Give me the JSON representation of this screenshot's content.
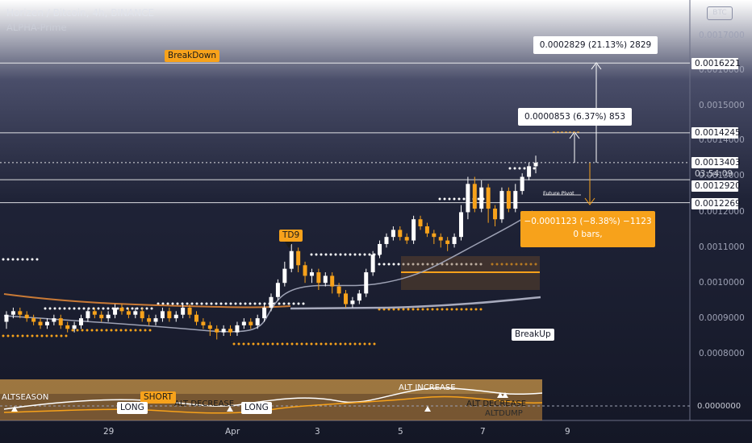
{
  "header": {
    "title": "Horizen / Bitcoin, 4h, BINANCE",
    "indicator": "ALPHA-Prime",
    "currency_badge": "BTC"
  },
  "price_axis": {
    "labels": [
      "0.0017000",
      "0.0016000",
      "0.0015000",
      "0.0014000",
      "0.0013000",
      "0.0012000",
      "0.0011000",
      "0.0010000",
      "0.0009000",
      "0.0008000"
    ],
    "tags": {
      "level_1": "0.0016221",
      "level_2": "0.0014245",
      "current_price": "0.0013403",
      "countdown": "03:54:09",
      "level_3": "0.0012920",
      "level_4": "0.0012269"
    },
    "oscillator_zero": "0.0000000"
  },
  "time_axis": {
    "labels": [
      "29",
      "Apr",
      "3",
      "5",
      "7",
      "9"
    ]
  },
  "annotations": {
    "range_up_large": "0.0002829 (21.13%) 2829",
    "range_up_small": "0.0000853 (6.37%) 853",
    "range_down_line1": "−0.0001123 (−8.38%) −1123",
    "range_down_line2": "0 bars,",
    "td9": "TD9",
    "breakdown": "BreakDown",
    "breakup": "BreakUp",
    "future_pivot": "Future Pivot"
  },
  "oscillator": {
    "alt_season": "ALTSEASON",
    "short": "SHORT",
    "long_1": "LONG",
    "long_2": "LONG",
    "alt_decrease_1": "ALT DECREASE",
    "alt_decrease_2": "ALT DECREASE",
    "alt_increase": "ALT INCREASE",
    "alt_dump": "ALTDUMP"
  },
  "colors": {
    "bull_candle": "#ffffff",
    "bear_candle": "#f7a21b",
    "accent_orange": "#f7a21b",
    "background": "#161a2b"
  },
  "chart_data": {
    "type": "candlestick",
    "symbol": "Horizen / Bitcoin",
    "timeframe": "4h",
    "exchange": "BINANCE",
    "ylim": [
      0.00075,
      0.00175
    ],
    "x_ticks": [
      "29",
      "Apr",
      "3",
      "5",
      "7",
      "9"
    ],
    "last_price": 0.0013403,
    "horizontal_levels": [
      0.0016221,
      0.0014245,
      0.0013403,
      0.001292,
      0.0012269
    ],
    "candles": [
      [
        0.00089,
        0.00091,
        0.00087,
        0.00092
      ],
      [
        0.00091,
        0.00092,
        0.0009,
        0.00093
      ],
      [
        0.00092,
        0.00091,
        0.0009,
        0.00093
      ],
      [
        0.00091,
        0.0009,
        0.00089,
        0.00092
      ],
      [
        0.0009,
        0.00089,
        0.00088,
        0.00091
      ],
      [
        0.00089,
        0.00088,
        0.00087,
        0.0009
      ],
      [
        0.00088,
        0.00089,
        0.00087,
        0.0009
      ],
      [
        0.00089,
        0.0009,
        0.00088,
        0.00091
      ],
      [
        0.0009,
        0.00088,
        0.00087,
        0.00091
      ],
      [
        0.00088,
        0.00087,
        0.00086,
        0.00089
      ],
      [
        0.00087,
        0.00088,
        0.00086,
        0.00089
      ],
      [
        0.00088,
        0.0009,
        0.00087,
        0.00091
      ],
      [
        0.0009,
        0.00092,
        0.00089,
        0.00093
      ],
      [
        0.00092,
        0.00091,
        0.0009,
        0.00093
      ],
      [
        0.00091,
        0.0009,
        0.00089,
        0.00092
      ],
      [
        0.0009,
        0.00091,
        0.00089,
        0.00092
      ],
      [
        0.00091,
        0.00093,
        0.0009,
        0.00094
      ],
      [
        0.00093,
        0.00092,
        0.00091,
        0.00094
      ],
      [
        0.00092,
        0.00091,
        0.0009,
        0.00093
      ],
      [
        0.00091,
        0.00092,
        0.0009,
        0.00093
      ],
      [
        0.00092,
        0.0009,
        0.00089,
        0.00093
      ],
      [
        0.0009,
        0.00089,
        0.00088,
        0.00091
      ],
      [
        0.00089,
        0.0009,
        0.00088,
        0.00091
      ],
      [
        0.0009,
        0.00092,
        0.00089,
        0.00093
      ],
      [
        0.00092,
        0.0009,
        0.00089,
        0.00093
      ],
      [
        0.0009,
        0.00091,
        0.00089,
        0.00092
      ],
      [
        0.00091,
        0.00093,
        0.0009,
        0.00094
      ],
      [
        0.00093,
        0.00091,
        0.0009,
        0.00094
      ],
      [
        0.00091,
        0.00089,
        0.00088,
        0.00092
      ],
      [
        0.00089,
        0.00088,
        0.00087,
        0.0009
      ],
      [
        0.00088,
        0.00087,
        0.00085,
        0.00089
      ],
      [
        0.00087,
        0.00086,
        0.00084,
        0.00088
      ],
      [
        0.00086,
        0.00087,
        0.00085,
        0.00088
      ],
      [
        0.00087,
        0.00086,
        0.00085,
        0.00088
      ],
      [
        0.00086,
        0.00088,
        0.00085,
        0.00089
      ],
      [
        0.00088,
        0.00089,
        0.00087,
        0.0009
      ],
      [
        0.00089,
        0.00088,
        0.00087,
        0.0009
      ],
      [
        0.00088,
        0.0009,
        0.00087,
        0.00091
      ],
      [
        0.0009,
        0.00093,
        0.00089,
        0.00094
      ],
      [
        0.00093,
        0.00096,
        0.00092,
        0.00097
      ],
      [
        0.00096,
        0.001,
        0.00095,
        0.00101
      ],
      [
        0.001,
        0.00104,
        0.00099,
        0.00106
      ],
      [
        0.00104,
        0.00109,
        0.00103,
        0.00111
      ],
      [
        0.00109,
        0.00105,
        0.00103,
        0.0011
      ],
      [
        0.00105,
        0.00102,
        0.001,
        0.00106
      ],
      [
        0.00102,
        0.00103,
        0.001,
        0.00104
      ],
      [
        0.00103,
        0.001,
        0.00098,
        0.00104
      ],
      [
        0.001,
        0.00102,
        0.00099,
        0.00103
      ],
      [
        0.00102,
        0.00099,
        0.00097,
        0.00103
      ],
      [
        0.00099,
        0.00097,
        0.00096,
        0.001
      ],
      [
        0.00097,
        0.00094,
        0.00093,
        0.00098
      ],
      [
        0.00094,
        0.00095,
        0.00093,
        0.00096
      ],
      [
        0.00095,
        0.00097,
        0.00094,
        0.00098
      ],
      [
        0.00097,
        0.00103,
        0.00096,
        0.00104
      ],
      [
        0.00103,
        0.00108,
        0.00102,
        0.00109
      ],
      [
        0.00108,
        0.00111,
        0.00107,
        0.00112
      ],
      [
        0.00111,
        0.00113,
        0.0011,
        0.00114
      ],
      [
        0.00113,
        0.00115,
        0.00112,
        0.00116
      ],
      [
        0.00115,
        0.00113,
        0.00112,
        0.00116
      ],
      [
        0.00113,
        0.00112,
        0.00111,
        0.00114
      ],
      [
        0.00112,
        0.00118,
        0.00111,
        0.00119
      ],
      [
        0.00118,
        0.00116,
        0.00115,
        0.00119
      ],
      [
        0.00116,
        0.00114,
        0.00113,
        0.00117
      ],
      [
        0.00114,
        0.00113,
        0.00111,
        0.00115
      ],
      [
        0.00113,
        0.00112,
        0.0011,
        0.00114
      ],
      [
        0.00112,
        0.00111,
        0.00109,
        0.00113
      ],
      [
        0.00111,
        0.00113,
        0.0011,
        0.00114
      ],
      [
        0.00113,
        0.0012,
        0.00112,
        0.00122
      ],
      [
        0.0012,
        0.00128,
        0.00118,
        0.0013
      ],
      [
        0.00128,
        0.00121,
        0.0012,
        0.0013
      ],
      [
        0.00121,
        0.00127,
        0.0012,
        0.00129
      ],
      [
        0.00127,
        0.00121,
        0.00117,
        0.00128
      ],
      [
        0.00121,
        0.00118,
        0.00116,
        0.00122
      ],
      [
        0.00118,
        0.00126,
        0.00117,
        0.00127
      ],
      [
        0.00126,
        0.00121,
        0.0012,
        0.00127
      ],
      [
        0.00121,
        0.00126,
        0.0012,
        0.00128
      ],
      [
        0.00126,
        0.0013,
        0.00125,
        0.00131
      ],
      [
        0.0013,
        0.00133,
        0.00129,
        0.00134
      ],
      [
        0.00133,
        0.00134,
        0.00131,
        0.00136
      ]
    ]
  }
}
